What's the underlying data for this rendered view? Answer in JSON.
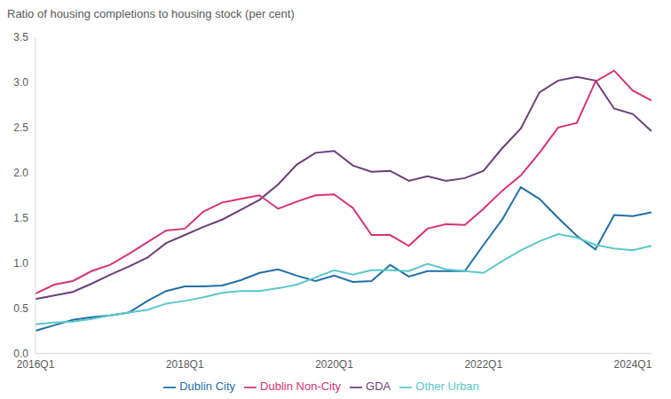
{
  "chart_data": {
    "type": "line",
    "title": "Ratio of housing completions to housing stock (per cent)",
    "categories": [
      "2016Q1",
      null,
      null,
      null,
      null,
      null,
      null,
      null,
      "2018Q1",
      null,
      null,
      null,
      null,
      null,
      null,
      null,
      "2020Q1",
      null,
      null,
      null,
      null,
      null,
      null,
      null,
      "2022Q1",
      null,
      null,
      null,
      null,
      null,
      null,
      null,
      "2024Q1",
      null
    ],
    "series": [
      {
        "name": "Dublin City",
        "color": "#1f6fa8",
        "values": [
          0.25,
          0.31,
          0.37,
          0.4,
          0.42,
          0.45,
          0.58,
          0.69,
          0.74,
          0.74,
          0.75,
          0.81,
          0.89,
          0.93,
          0.86,
          0.8,
          0.86,
          0.79,
          0.8,
          0.98,
          0.85,
          0.91,
          0.91,
          0.91,
          1.2,
          1.48,
          1.84,
          1.71,
          1.5,
          1.3,
          1.15,
          1.53,
          1.52,
          1.56
        ]
      },
      {
        "name": "Other Urban",
        "color": "#5bc8c8",
        "values": [
          0.32,
          0.34,
          0.35,
          0.38,
          0.42,
          0.45,
          0.48,
          0.55,
          0.58,
          0.62,
          0.67,
          0.69,
          0.69,
          0.72,
          0.76,
          0.84,
          0.92,
          0.87,
          0.92,
          0.92,
          0.91,
          0.99,
          0.93,
          0.91,
          0.89,
          1.02,
          1.14,
          1.24,
          1.32,
          1.28,
          1.2,
          1.16,
          1.14,
          1.19
        ]
      },
      {
        "name": "GDA",
        "color": "#6b3f7a",
        "values": [
          0.6,
          0.64,
          0.68,
          0.77,
          0.87,
          0.96,
          1.06,
          1.22,
          1.31,
          1.4,
          1.48,
          1.59,
          1.7,
          1.87,
          2.09,
          2.22,
          2.24,
          2.08,
          2.01,
          2.02,
          1.91,
          1.96,
          1.91,
          1.94,
          2.02,
          2.27,
          2.49,
          2.89,
          3.02,
          3.06,
          3.02,
          2.71,
          2.65,
          2.46
        ]
      },
      {
        "name": "Dublin Non-City",
        "color": "#d6337a",
        "values": [
          0.66,
          0.76,
          0.8,
          0.91,
          0.98,
          1.1,
          1.23,
          1.36,
          1.38,
          1.57,
          1.67,
          1.71,
          1.75,
          1.6,
          1.68,
          1.75,
          1.76,
          1.61,
          1.31,
          1.31,
          1.19,
          1.38,
          1.43,
          1.42,
          1.6,
          1.8,
          1.97,
          2.22,
          2.5,
          2.55,
          3.01,
          3.13,
          2.91,
          2.8
        ]
      }
    ],
    "ylim": [
      0,
      3.5
    ],
    "yticks": [
      {
        "value": 0,
        "label": "0.0"
      },
      {
        "value": 0.5,
        "label": "0.5"
      },
      {
        "value": 1,
        "label": "1.0"
      },
      {
        "value": 1.5,
        "label": "1.5"
      },
      {
        "value": 2,
        "label": "2.0"
      },
      {
        "value": 2.5,
        "label": "2.5"
      },
      {
        "value": 3,
        "label": "3.0"
      },
      {
        "value": 3.5,
        "label": "3.5"
      }
    ],
    "grid": false,
    "legend": "bottom"
  }
}
